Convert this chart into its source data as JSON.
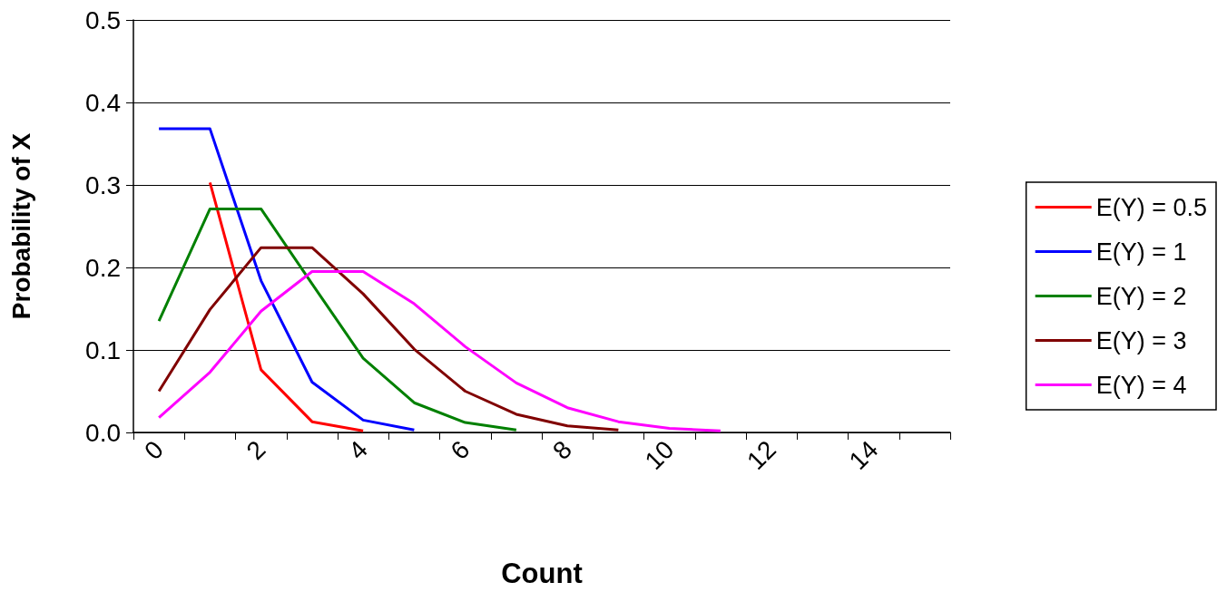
{
  "chart_data": {
    "type": "line",
    "xlabel": "Count",
    "ylabel": "Probability of X",
    "categories": [
      "0",
      null,
      "2",
      null,
      "4",
      null,
      "6",
      null,
      "8",
      null,
      "10",
      null,
      "12",
      null,
      "14",
      null
    ],
    "series": [
      {
        "name": "E(Y) = 0.5",
        "color": "#ff0000",
        "values": [
          null,
          0.303,
          0.076,
          0.013,
          0.002,
          null,
          null,
          null,
          null,
          null,
          null,
          null,
          null,
          null,
          null,
          null
        ]
      },
      {
        "name": "E(Y) = 1",
        "color": "#0000ff",
        "values": [
          0.368,
          0.368,
          0.184,
          0.061,
          0.015,
          0.003,
          null,
          null,
          null,
          null,
          null,
          null,
          null,
          null,
          null,
          null
        ]
      },
      {
        "name": "E(Y) = 2",
        "color": "#008000",
        "values": [
          0.135,
          0.271,
          0.271,
          0.18,
          0.09,
          0.036,
          0.012,
          0.003,
          null,
          null,
          null,
          null,
          null,
          null,
          null,
          null
        ]
      },
      {
        "name": "E(Y) = 3",
        "color": "#800000",
        "values": [
          0.05,
          0.149,
          0.224,
          0.224,
          0.168,
          0.101,
          0.05,
          0.022,
          0.008,
          0.003,
          null,
          null,
          null,
          null,
          null,
          null
        ]
      },
      {
        "name": "E(Y) = 4",
        "color": "#ff00ff",
        "values": [
          0.018,
          0.073,
          0.147,
          0.195,
          0.195,
          0.156,
          0.104,
          0.06,
          0.03,
          0.013,
          0.005,
          0.002,
          null,
          null,
          null,
          null
        ]
      }
    ],
    "ylim": [
      0,
      0.5
    ],
    "yticks": [
      {
        "value": 0,
        "label": "0.0"
      },
      {
        "value": 0.1,
        "label": "0.1"
      },
      {
        "value": 0.2,
        "label": "0.2"
      },
      {
        "value": 0.3,
        "label": "0.3"
      },
      {
        "value": 0.4,
        "label": "0.4"
      },
      {
        "value": 0.5,
        "label": "0.5"
      }
    ],
    "grid": "y",
    "legend": "right",
    "marker": "none",
    "line_style": "solid"
  }
}
